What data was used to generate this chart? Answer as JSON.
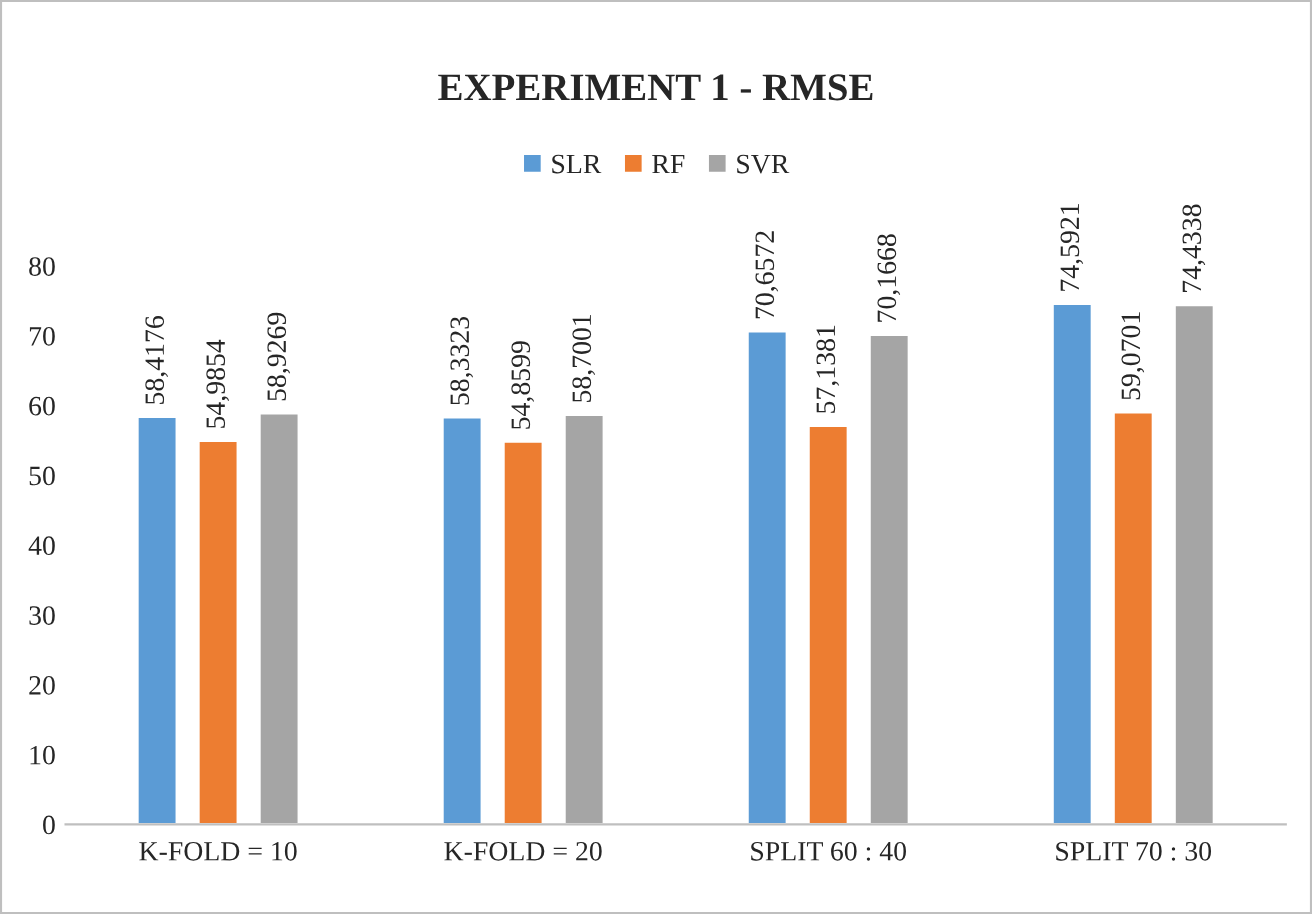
{
  "chart_data": {
    "type": "bar",
    "title": "EXPERIMENT 1 - RMSE",
    "categories": [
      "K-FOLD = 10",
      "K-FOLD = 20",
      "SPLIT 60 : 40",
      "SPLIT 70 : 30"
    ],
    "series": [
      {
        "name": "SLR",
        "color": "#5b9bd5",
        "values": [
          58.4176,
          58.3323,
          70.6572,
          74.5921
        ],
        "value_labels": [
          "58,4176",
          "58,3323",
          "70,6572",
          "74,5921"
        ]
      },
      {
        "name": "RF",
        "color": "#ed7d31",
        "values": [
          54.9854,
          54.8599,
          57.1381,
          59.0701
        ],
        "value_labels": [
          "54,9854",
          "54,8599",
          "57,1381",
          "59,0701"
        ]
      },
      {
        "name": "SVR",
        "color": "#a5a5a5",
        "values": [
          58.9269,
          58.7001,
          70.1668,
          74.4338
        ],
        "value_labels": [
          "58,9269",
          "58,7001",
          "70,1668",
          "74,4338"
        ]
      }
    ],
    "ylim": [
      0,
      80
    ],
    "yticks": [
      0,
      10,
      20,
      30,
      40,
      50,
      60,
      70,
      80
    ],
    "grid": false,
    "legend": "top"
  }
}
